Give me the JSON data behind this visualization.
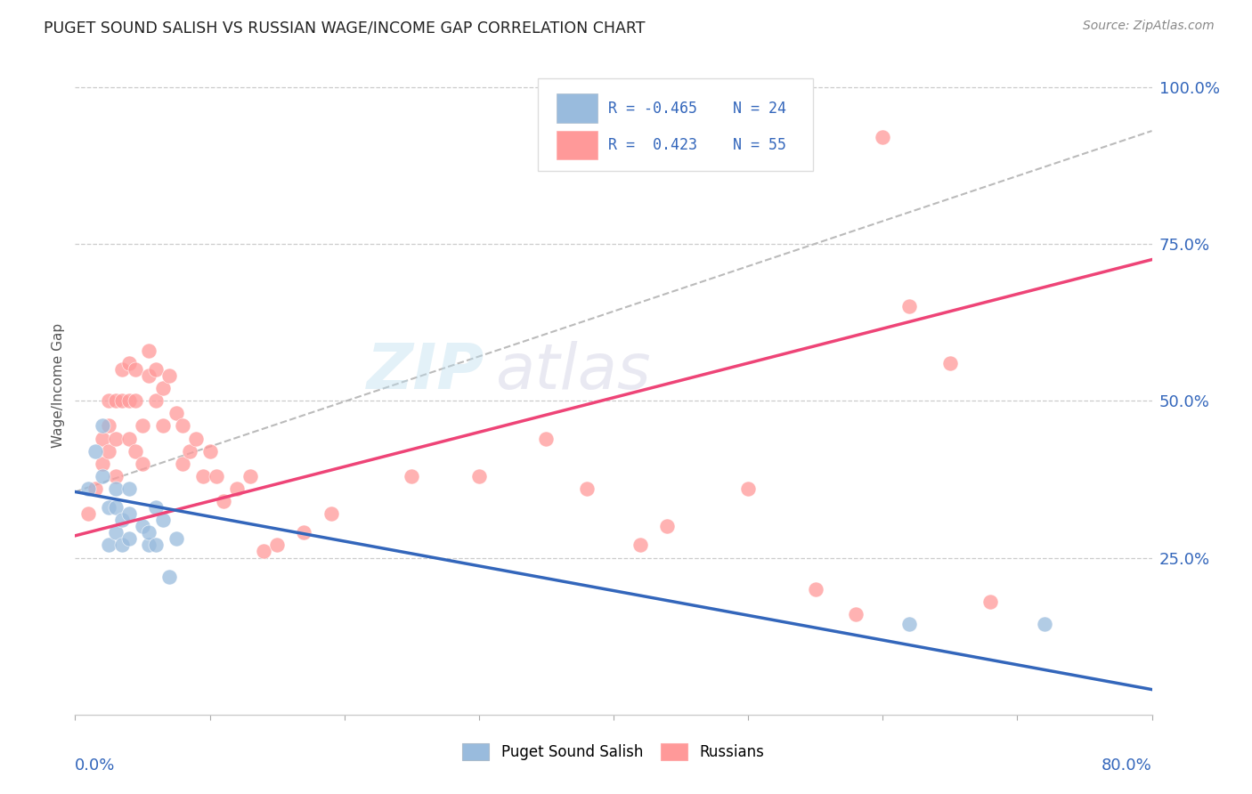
{
  "title": "PUGET SOUND SALISH VS RUSSIAN WAGE/INCOME GAP CORRELATION CHART",
  "source": "Source: ZipAtlas.com",
  "ylabel": "Wage/Income Gap",
  "blue_color": "#99BBDD",
  "pink_color": "#FF9999",
  "blue_line_color": "#3366BB",
  "pink_line_color": "#EE4477",
  "blue_points_x": [
    0.01,
    0.015,
    0.02,
    0.02,
    0.025,
    0.025,
    0.03,
    0.03,
    0.03,
    0.035,
    0.035,
    0.04,
    0.04,
    0.04,
    0.05,
    0.055,
    0.055,
    0.06,
    0.06,
    0.065,
    0.07,
    0.075,
    0.62,
    0.72
  ],
  "blue_points_y": [
    0.36,
    0.42,
    0.46,
    0.38,
    0.33,
    0.27,
    0.36,
    0.33,
    0.29,
    0.31,
    0.27,
    0.36,
    0.32,
    0.28,
    0.3,
    0.27,
    0.29,
    0.33,
    0.27,
    0.31,
    0.22,
    0.28,
    0.145,
    0.145
  ],
  "pink_points_x": [
    0.01,
    0.015,
    0.02,
    0.02,
    0.025,
    0.025,
    0.025,
    0.03,
    0.03,
    0.03,
    0.035,
    0.035,
    0.04,
    0.04,
    0.04,
    0.045,
    0.045,
    0.045,
    0.05,
    0.05,
    0.055,
    0.055,
    0.06,
    0.06,
    0.065,
    0.065,
    0.07,
    0.075,
    0.08,
    0.08,
    0.085,
    0.09,
    0.095,
    0.1,
    0.105,
    0.11,
    0.12,
    0.13,
    0.14,
    0.15,
    0.17,
    0.19,
    0.25,
    0.3,
    0.35,
    0.38,
    0.42,
    0.44,
    0.5,
    0.55,
    0.58,
    0.6,
    0.62,
    0.65,
    0.68
  ],
  "pink_points_y": [
    0.32,
    0.36,
    0.44,
    0.4,
    0.5,
    0.46,
    0.42,
    0.5,
    0.44,
    0.38,
    0.55,
    0.5,
    0.56,
    0.5,
    0.44,
    0.55,
    0.5,
    0.42,
    0.46,
    0.4,
    0.58,
    0.54,
    0.55,
    0.5,
    0.52,
    0.46,
    0.54,
    0.48,
    0.46,
    0.4,
    0.42,
    0.44,
    0.38,
    0.42,
    0.38,
    0.34,
    0.36,
    0.38,
    0.26,
    0.27,
    0.29,
    0.32,
    0.38,
    0.38,
    0.44,
    0.36,
    0.27,
    0.3,
    0.36,
    0.2,
    0.16,
    0.92,
    0.65,
    0.56,
    0.18
  ],
  "xmin": 0.0,
  "xmax": 0.8,
  "ymin": 0.0,
  "ymax": 1.05,
  "ytick_positions": [
    0.25,
    0.5,
    0.75,
    1.0
  ],
  "ytick_labels": [
    "25.0%",
    "50.0%",
    "75.0%",
    "100.0%"
  ],
  "blue_line_x0": 0.0,
  "blue_line_x1": 0.8,
  "blue_line_y0": 0.355,
  "blue_line_y1": 0.04,
  "pink_line_x0": 0.0,
  "pink_line_x1": 0.8,
  "pink_line_y0": 0.285,
  "pink_line_y1": 0.725,
  "dash_line_x0": 0.0,
  "dash_line_x1": 0.8,
  "dash_line_y0": 0.355,
  "dash_line_y1": 0.93,
  "grid_color": "#CCCCCC",
  "spine_color": "#CCCCCC"
}
